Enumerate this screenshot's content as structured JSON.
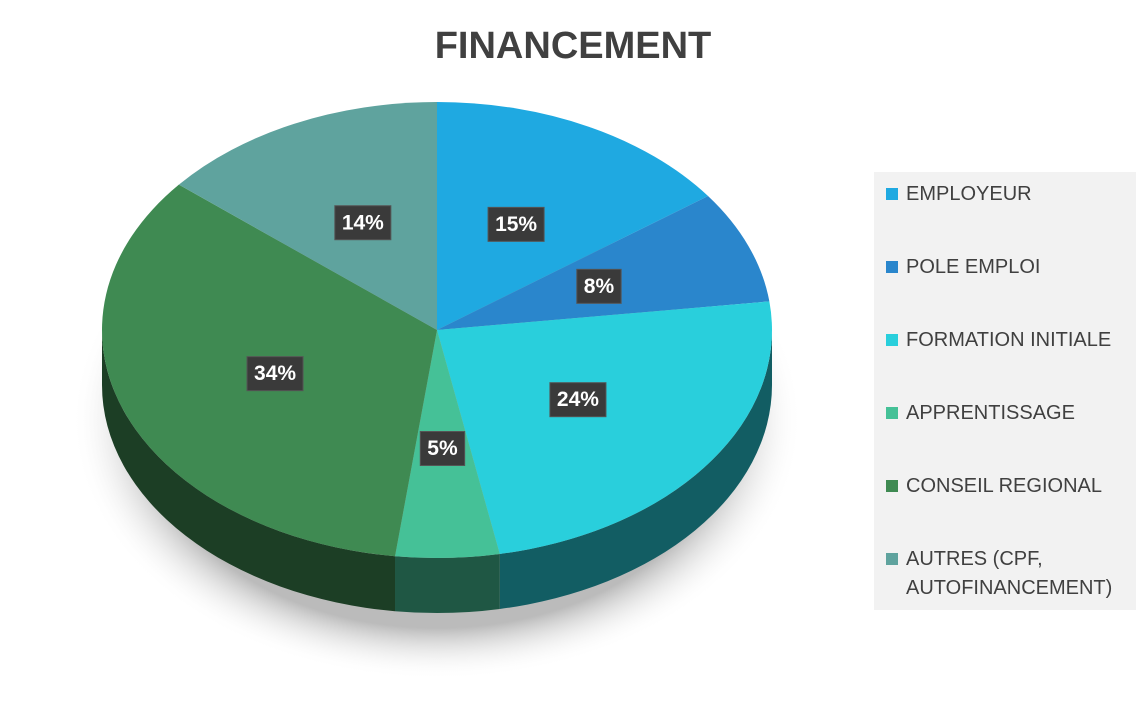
{
  "chart_data": {
    "type": "pie",
    "title": "FINANCEMENT",
    "categories": [
      "EMPLOYEUR",
      "POLE EMPLOI",
      "FORMATION INITIALE",
      "APPRENTISSAGE",
      "CONSEIL REGIONAL",
      "AUTRES (CPF, AUTOFINANCEMENT)"
    ],
    "values": [
      15,
      8,
      24,
      5,
      34,
      14
    ],
    "value_labels": [
      "15%",
      "8%",
      "24%",
      "5%",
      "34%",
      "14%"
    ],
    "colors": [
      "#1fa9e1",
      "#2a86cc",
      "#29cfdc",
      "#45c197",
      "#3f8a52",
      "#5fa39e"
    ],
    "legend": "right"
  }
}
